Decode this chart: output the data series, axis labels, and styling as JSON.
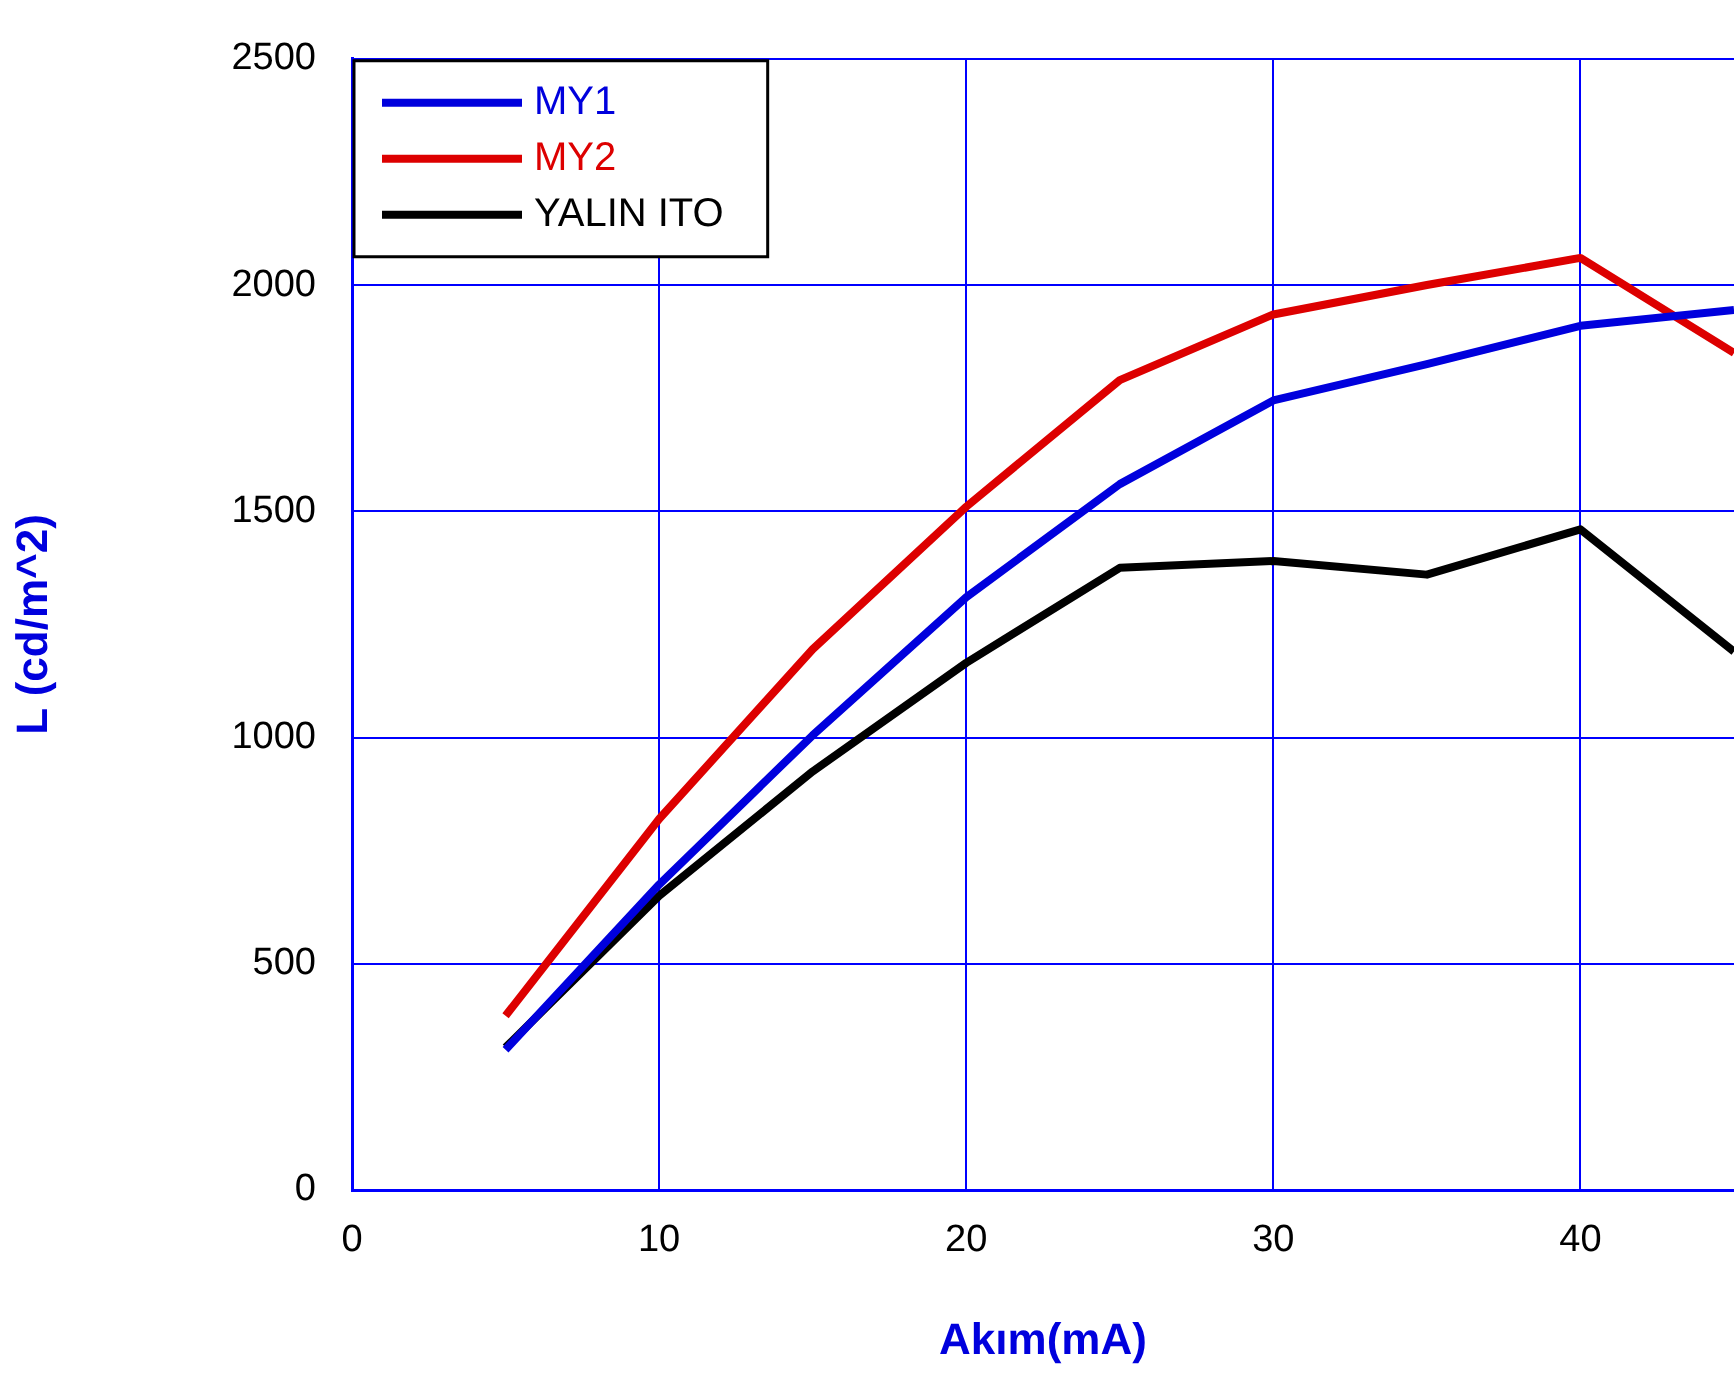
{
  "chart_data": {
    "type": "line",
    "xlabel": "Akım(mA)",
    "ylabel": "L (cd/m^2)",
    "x": [
      5,
      10,
      15,
      20,
      25,
      30,
      35,
      40,
      45
    ],
    "series": [
      {
        "name": "MY1",
        "color": "#0000dd",
        "values": [
          310,
          675,
          1005,
          1310,
          1560,
          1745,
          1825,
          1910,
          1945
        ]
      },
      {
        "name": "MY2",
        "color": "#dd0000",
        "values": [
          385,
          820,
          1195,
          1510,
          1790,
          1935,
          2000,
          2060,
          1850
        ]
      },
      {
        "name": "YALIN ITO",
        "color": "#000000",
        "values": [
          315,
          650,
          925,
          1165,
          1375,
          1390,
          1360,
          1460,
          1190
        ]
      }
    ],
    "xlim": [
      0,
      45
    ],
    "xticks": [
      0,
      10,
      20,
      30,
      40
    ],
    "ylim": [
      0,
      2500
    ],
    "yticks": [
      0,
      500,
      1000,
      1500,
      2000,
      2500
    ],
    "grid": true,
    "legend": "top left",
    "marker": "none",
    "line_style": "solid"
  }
}
